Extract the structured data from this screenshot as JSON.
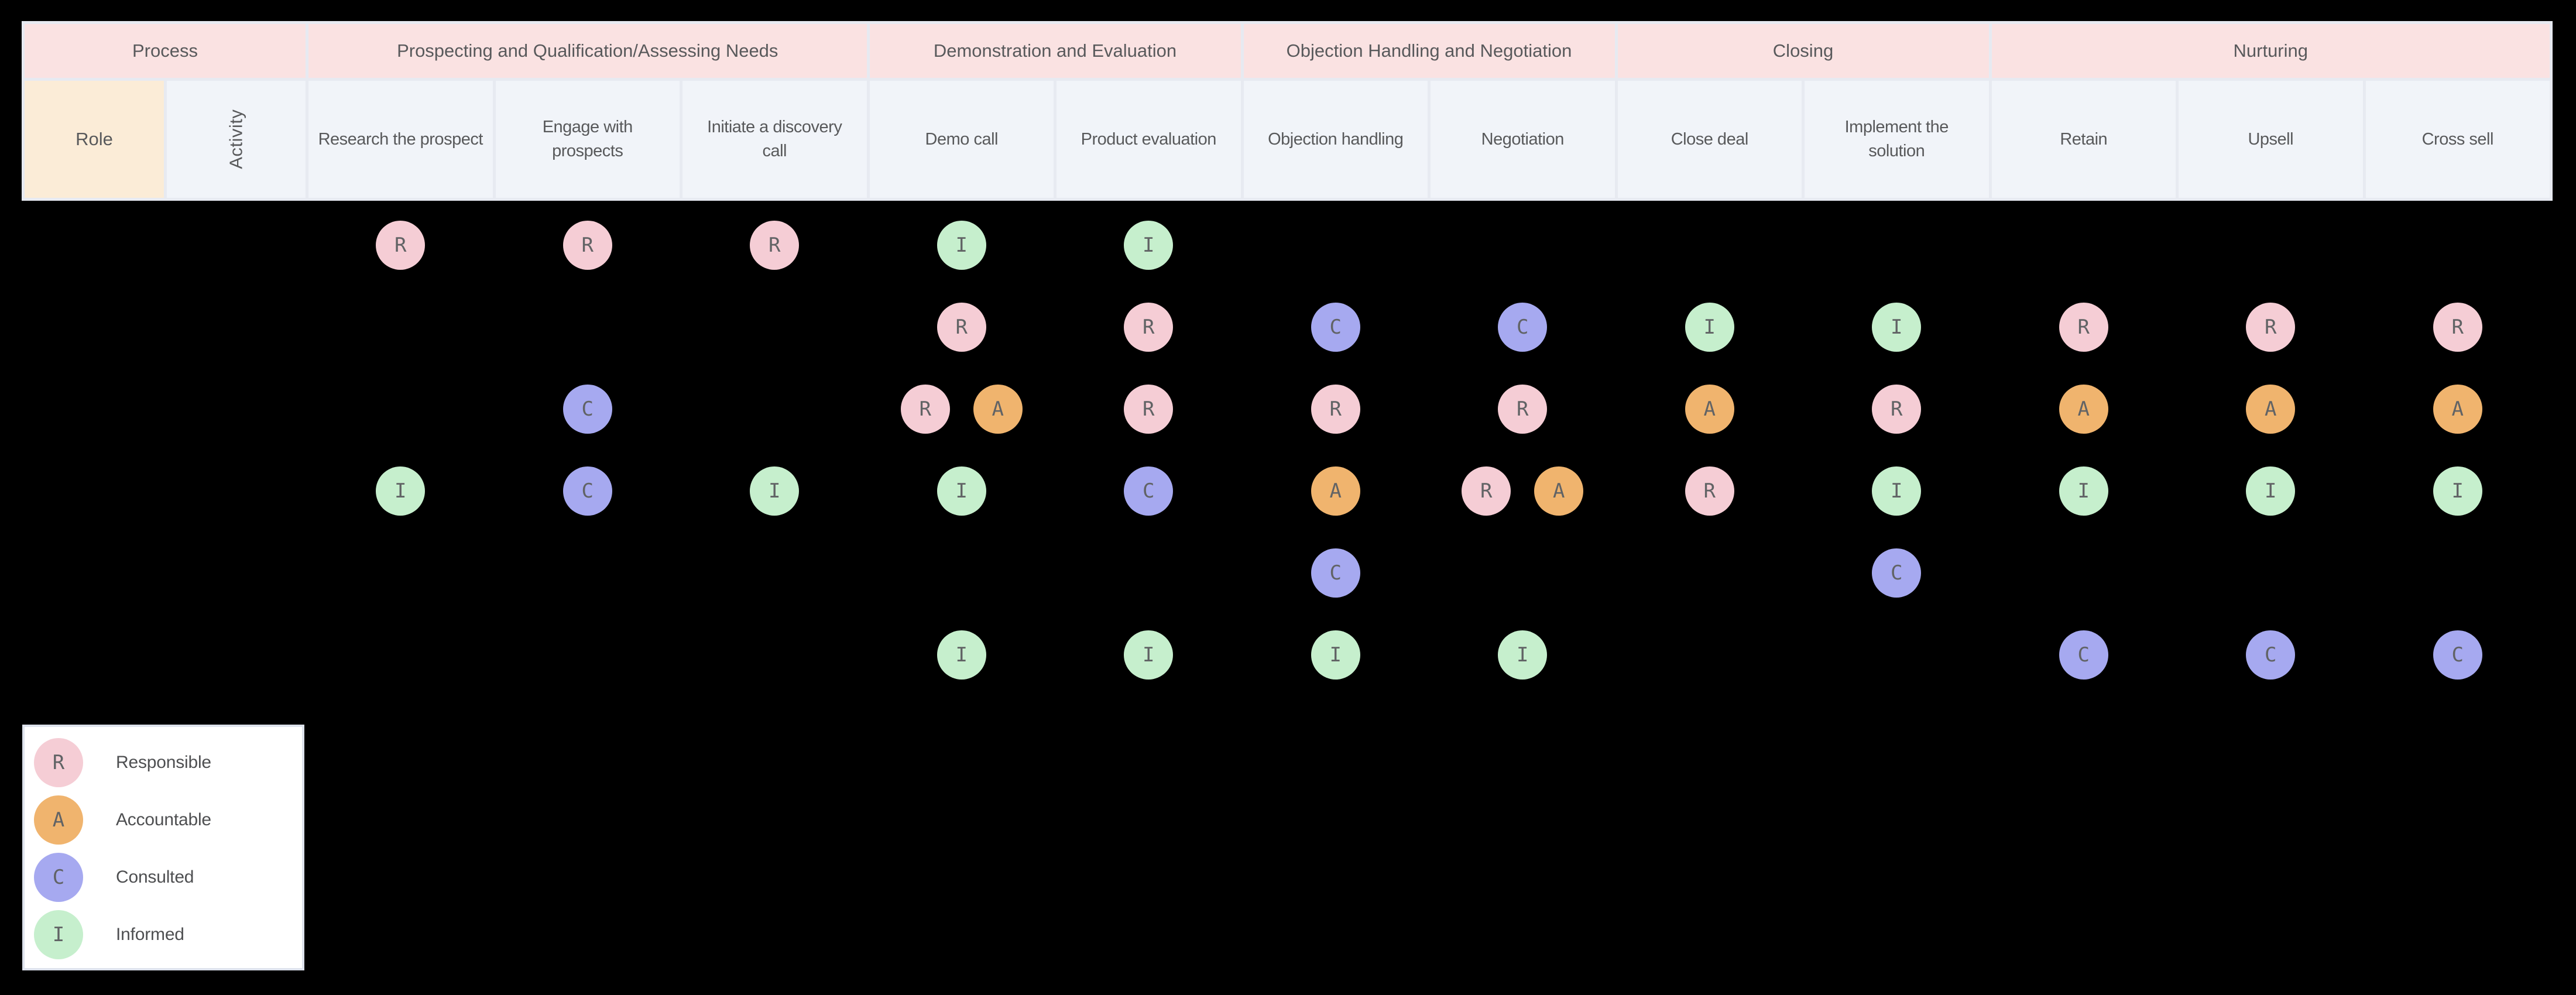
{
  "header": {
    "process_groups": [
      {
        "label": "Process",
        "span": 2
      },
      {
        "label": "Prospecting and Qualification/Assessing Needs",
        "span": 3
      },
      {
        "label": "Demonstration and Evaluation",
        "span": 2
      },
      {
        "label": "Objection Handling and Negotiation",
        "span": 2
      },
      {
        "label": "Closing",
        "span": 2
      },
      {
        "label": "Nurturing",
        "span": 3
      }
    ],
    "role_label": "Role",
    "activity_label": "Activity",
    "activities": [
      "Research the prospect",
      "Engage with\nprospects",
      "Initiate a discovery\ncall",
      "Demo call",
      "Product evaluation",
      "Objection handling",
      "Negotiation",
      "Close deal",
      "Implement the\nsolution",
      "Retain",
      "Upsell",
      "Cross sell"
    ]
  },
  "rows": [
    {
      "cells": [
        "R",
        "R",
        "R",
        "I",
        "I",
        "",
        "",
        "",
        "",
        "",
        "",
        ""
      ]
    },
    {
      "cells": [
        "",
        "",
        "",
        "R",
        "R",
        "C",
        "C",
        "I",
        "I",
        "R",
        "R",
        "R"
      ]
    },
    {
      "cells": [
        "",
        "C",
        "",
        "R+A",
        "R",
        "R",
        "R",
        "A",
        "R",
        "A",
        "A",
        "A"
      ]
    },
    {
      "cells": [
        "I",
        "C",
        "I",
        "I",
        "C",
        "A",
        "R+A",
        "R",
        "I",
        "I",
        "I",
        "I"
      ]
    },
    {
      "cells": [
        "",
        "",
        "",
        "",
        "",
        "C",
        "",
        "",
        "C",
        "",
        "",
        ""
      ]
    },
    {
      "cells": [
        "",
        "",
        "",
        "I",
        "I",
        "I",
        "I",
        "",
        "",
        "C",
        "C",
        "C"
      ]
    }
  ],
  "legend": {
    "items": [
      {
        "letter": "R",
        "label": "Responsible"
      },
      {
        "letter": "A",
        "label": "Accountable"
      },
      {
        "letter": "C",
        "label": "Consulted"
      },
      {
        "letter": "I",
        "label": "Informed"
      }
    ]
  },
  "colors": {
    "R": "#f5cdd5",
    "A": "#f0b46e",
    "C": "#a6a9f0",
    "I": "#c6efcd",
    "badge_letter": "#616365",
    "header_pink": "#fae2e2",
    "header_cream": "#fbecd7",
    "header_gray": "#f1f4f9",
    "grid_line": "#e7eaf1",
    "header_text": "#58595b",
    "legend_text": "#4e4f51",
    "background": "#000000",
    "legend_bg": "#ffffff"
  }
}
